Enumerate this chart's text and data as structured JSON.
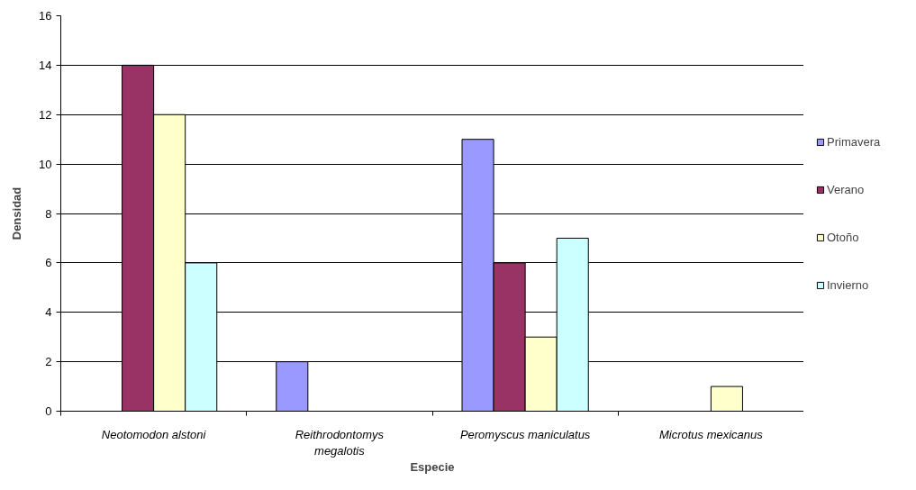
{
  "chart_data": {
    "type": "bar",
    "xlabel": "Especie",
    "ylabel": "Densidad",
    "categories": [
      "Neotomodon alstoni",
      "Reithrodontomys megalotis",
      "Peromyscus maniculatus",
      "Microtus mexicanus"
    ],
    "series": [
      {
        "name": "Primavera",
        "color": "#9999ff",
        "values": [
          0,
          2,
          11,
          0
        ]
      },
      {
        "name": "Verano",
        "color": "#993366",
        "values": [
          14,
          0,
          6,
          0
        ]
      },
      {
        "name": "Otoño",
        "color": "#ffffcc",
        "values": [
          12,
          0,
          3,
          1
        ]
      },
      {
        "name": "Invierno",
        "color": "#ccffff",
        "values": [
          6,
          0,
          7,
          0
        ]
      }
    ],
    "ylim": [
      0,
      16
    ],
    "yticks": [
      0,
      2,
      4,
      6,
      8,
      10,
      12,
      14,
      16
    ],
    "grid": "y",
    "legend": "right"
  }
}
